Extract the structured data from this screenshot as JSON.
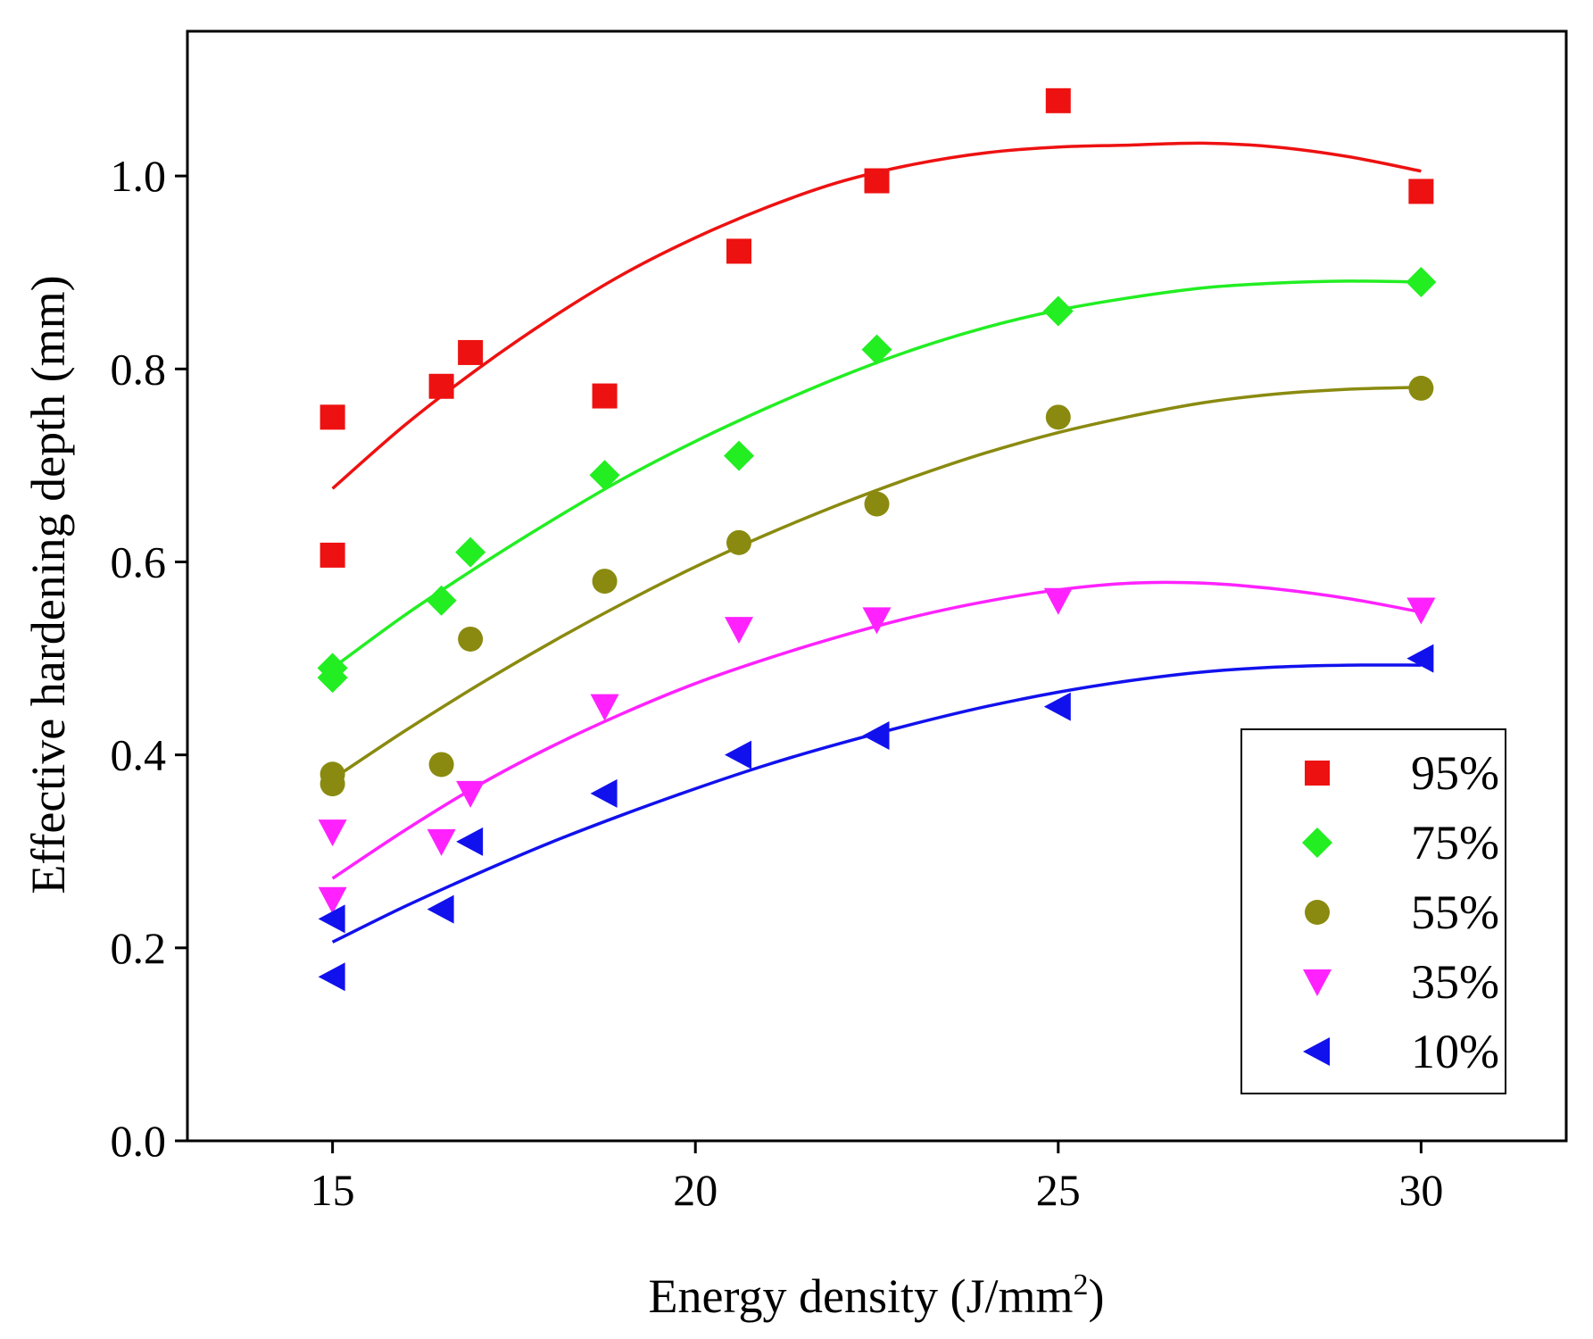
{
  "chart_data": {
    "type": "scatter",
    "xlabel": "Energy density (J/mm",
    "xlabel_sup": "2",
    "xlabel_end": ")",
    "ylabel": "Effective hardening depth (mm)",
    "xlim": [
      13,
      32
    ],
    "ylim": [
      0.0,
      1.15
    ],
    "xticks": [
      15,
      20,
      25,
      30
    ],
    "xtick_labels": [
      "15",
      "20",
      "25",
      "30"
    ],
    "yticks": [
      0.0,
      0.2,
      0.4,
      0.6,
      0.8,
      1.0
    ],
    "ytick_labels": [
      "0.0",
      "0.2",
      "0.4",
      "0.6",
      "0.8",
      "1.0"
    ],
    "grid": false,
    "legend_position": "bottom-right",
    "series": [
      {
        "name": "95%",
        "marker": "square",
        "color": "#ee1111",
        "x": [
          15,
          15,
          16.5,
          16.9,
          18.75,
          20.6,
          22.5,
          25,
          30
        ],
        "y": [
          0.75,
          0.607,
          0.782,
          0.817,
          0.772,
          0.922,
          0.995,
          1.078,
          0.984
        ],
        "fit": [
          [
            15,
            0.676
          ],
          [
            16,
            0.742
          ],
          [
            17,
            0.8
          ],
          [
            18,
            0.852
          ],
          [
            19,
            0.898
          ],
          [
            20,
            0.936
          ],
          [
            21,
            0.968
          ],
          [
            22,
            0.994
          ],
          [
            23,
            1.012
          ],
          [
            24,
            1.024
          ],
          [
            25,
            1.03
          ],
          [
            26,
            1.032
          ],
          [
            27,
            1.034
          ],
          [
            28,
            1.03
          ],
          [
            29,
            1.02
          ],
          [
            30,
            1.005
          ]
        ]
      },
      {
        "name": "75%",
        "marker": "diamond",
        "color": "#22ee22",
        "x": [
          15,
          15,
          16.5,
          16.9,
          18.75,
          20.6,
          22.5,
          25,
          30
        ],
        "y": [
          0.49,
          0.48,
          0.56,
          0.61,
          0.69,
          0.71,
          0.82,
          0.86,
          0.89
        ],
        "fit": [
          [
            15,
            0.49
          ],
          [
            16,
            0.545
          ],
          [
            17,
            0.595
          ],
          [
            18,
            0.642
          ],
          [
            19,
            0.686
          ],
          [
            20,
            0.725
          ],
          [
            21,
            0.76
          ],
          [
            22,
            0.792
          ],
          [
            23,
            0.82
          ],
          [
            24,
            0.843
          ],
          [
            25,
            0.861
          ],
          [
            26,
            0.874
          ],
          [
            27,
            0.884
          ],
          [
            28,
            0.889
          ],
          [
            29,
            0.891
          ],
          [
            30,
            0.89
          ]
        ]
      },
      {
        "name": "55%",
        "marker": "circle",
        "color": "#8a8a10",
        "x": [
          15,
          15,
          16.5,
          16.9,
          18.75,
          20.6,
          22.5,
          25,
          30
        ],
        "y": [
          0.38,
          0.37,
          0.39,
          0.52,
          0.58,
          0.62,
          0.66,
          0.75,
          0.78
        ],
        "fit": [
          [
            15,
            0.375
          ],
          [
            16,
            0.425
          ],
          [
            17,
            0.472
          ],
          [
            18,
            0.516
          ],
          [
            19,
            0.557
          ],
          [
            20,
            0.595
          ],
          [
            21,
            0.629
          ],
          [
            22,
            0.66
          ],
          [
            23,
            0.688
          ],
          [
            24,
            0.713
          ],
          [
            25,
            0.734
          ],
          [
            26,
            0.751
          ],
          [
            27,
            0.765
          ],
          [
            28,
            0.774
          ],
          [
            29,
            0.779
          ],
          [
            30,
            0.781
          ]
        ]
      },
      {
        "name": "35%",
        "marker": "triangle-down",
        "color": "#ff22ff",
        "x": [
          15,
          15,
          16.5,
          16.9,
          18.75,
          20.6,
          22.5,
          25,
          30
        ],
        "y": [
          0.32,
          0.25,
          0.31,
          0.36,
          0.45,
          0.53,
          0.54,
          0.56,
          0.55
        ],
        "fit": [
          [
            15,
            0.272
          ],
          [
            16,
            0.322
          ],
          [
            17,
            0.368
          ],
          [
            18,
            0.408
          ],
          [
            19,
            0.443
          ],
          [
            20,
            0.474
          ],
          [
            21,
            0.5
          ],
          [
            22,
            0.523
          ],
          [
            23,
            0.543
          ],
          [
            24,
            0.559
          ],
          [
            25,
            0.571
          ],
          [
            26,
            0.578
          ],
          [
            27,
            0.578
          ],
          [
            28,
            0.572
          ],
          [
            29,
            0.562
          ],
          [
            30,
            0.548
          ]
        ]
      },
      {
        "name": "10%",
        "marker": "triangle-left",
        "color": "#1111ee",
        "x": [
          15,
          15,
          16.5,
          16.9,
          18.75,
          20.6,
          22.5,
          25,
          30
        ],
        "y": [
          0.23,
          0.17,
          0.24,
          0.31,
          0.36,
          0.4,
          0.42,
          0.45,
          0.5
        ],
        "fit": [
          [
            15,
            0.206
          ],
          [
            16,
            0.243
          ],
          [
            17,
            0.277
          ],
          [
            18,
            0.309
          ],
          [
            19,
            0.338
          ],
          [
            20,
            0.365
          ],
          [
            21,
            0.39
          ],
          [
            22,
            0.412
          ],
          [
            23,
            0.432
          ],
          [
            24,
            0.45
          ],
          [
            25,
            0.465
          ],
          [
            26,
            0.477
          ],
          [
            27,
            0.486
          ],
          [
            28,
            0.491
          ],
          [
            29,
            0.493
          ],
          [
            30,
            0.493
          ]
        ]
      }
    ]
  }
}
